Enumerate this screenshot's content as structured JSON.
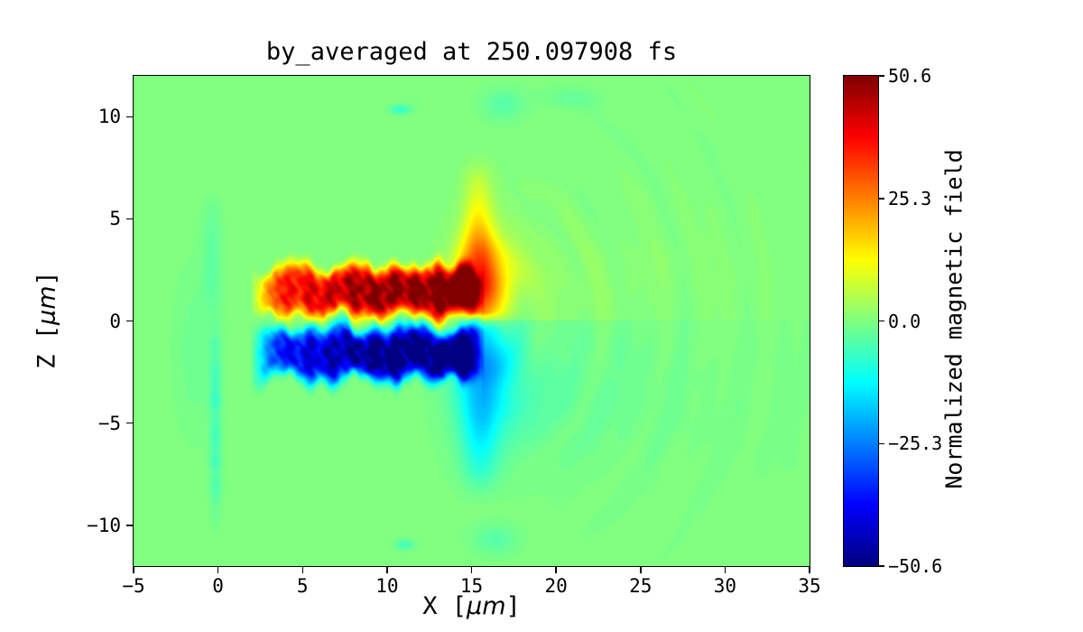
{
  "chart": {
    "title": "by_averaged at 250.097908 fs",
    "xlabel": {
      "pre": "X [",
      "unit": "μm",
      "post": "]"
    },
    "ylabel": {
      "pre": "Z [",
      "unit": "μm",
      "post": "]"
    },
    "colorbar_label": "Normalized magnetic field"
  },
  "chart_data": {
    "type": "heatmap",
    "title": "by_averaged at 250.097908 fs",
    "xlabel": "X [μm]",
    "ylabel": "Z [μm]",
    "colorbar_label": "Normalized magnetic field",
    "colormap": "jet",
    "xlim": [
      -5,
      35
    ],
    "ylim": [
      -12,
      12
    ],
    "clim": [
      -50.6,
      50.6
    ],
    "x_ticks": [
      {
        "v": -5,
        "label": "−5"
      },
      {
        "v": 0,
        "label": "0"
      },
      {
        "v": 5,
        "label": "5"
      },
      {
        "v": 10,
        "label": "10"
      },
      {
        "v": 15,
        "label": "15"
      },
      {
        "v": 20,
        "label": "20"
      },
      {
        "v": 25,
        "label": "25"
      },
      {
        "v": 30,
        "label": "30"
      },
      {
        "v": 35,
        "label": "35"
      }
    ],
    "y_ticks": [
      {
        "v": 10,
        "label": "10"
      },
      {
        "v": 5,
        "label": "5"
      },
      {
        "v": 0,
        "label": "0"
      },
      {
        "v": -5,
        "label": "−5"
      },
      {
        "v": -10,
        "label": "−10"
      }
    ],
    "colorbar_ticks": [
      {
        "v": 50.6,
        "label": "50.6"
      },
      {
        "v": 25.3,
        "label": "25.3"
      },
      {
        "v": 0.0,
        "label": "0.0"
      },
      {
        "v": -25.3,
        "label": "−25.3"
      },
      {
        "v": -50.6,
        "label": "−50.6"
      }
    ],
    "features": {
      "background_value": 0,
      "positive_filament": {
        "x_range": [
          2,
          15.8
        ],
        "z_center": 1.45,
        "half_thickness": 1.15,
        "peak_value": 50
      },
      "negative_filament": {
        "x_range": [
          2,
          15.8
        ],
        "z_center": -1.6,
        "half_thickness": 1.2,
        "peak_value": -52
      },
      "front_plume": {
        "x": 15.4,
        "up_peak": 26,
        "up_z_max": 8.5,
        "down_peak": -12,
        "down_z_min": -9
      },
      "fan": {
        "up_value": 4.5,
        "down_value": -6
      },
      "left_sheath": {
        "x": -0.15,
        "value": -6
      },
      "spots": [
        {
          "x": 10.8,
          "z": 10.35,
          "sx": 0.6,
          "sz": 0.22,
          "value": -8
        },
        {
          "x": 16.9,
          "z": 10.6,
          "sx": 1.2,
          "sz": 0.75,
          "value": -4
        },
        {
          "x": 21.0,
          "z": 10.9,
          "sx": 1.6,
          "sz": 0.5,
          "value": -2.5
        },
        {
          "x": 16.4,
          "z": -10.7,
          "sx": 1.3,
          "sz": 0.7,
          "value": -4
        },
        {
          "x": 11.05,
          "z": -10.95,
          "sx": 0.55,
          "sz": 0.25,
          "value": -6
        }
      ]
    }
  }
}
